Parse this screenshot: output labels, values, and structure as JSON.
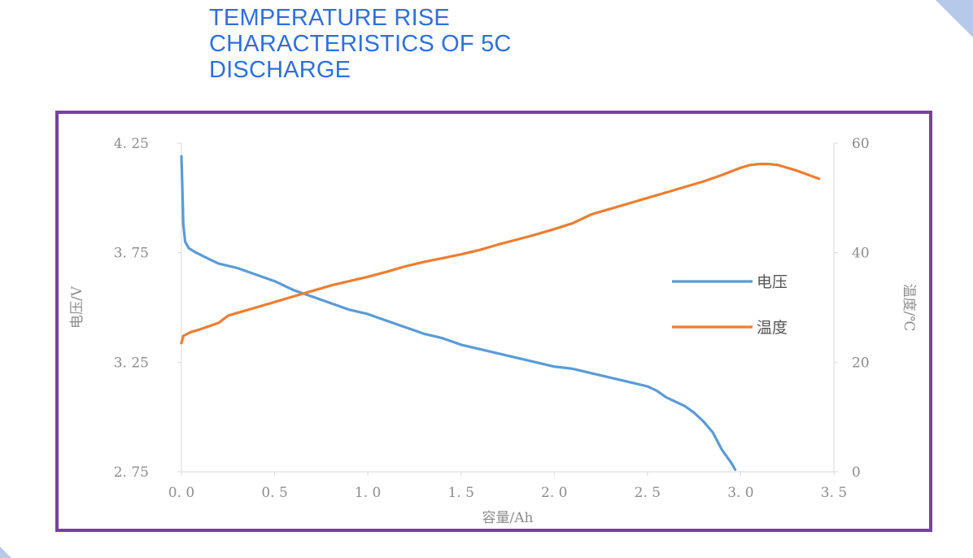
{
  "page": {
    "title": "TEMPERATURE RISE\nCHARACTERISTICS OF 5C\nDISCHARGE"
  },
  "chart_data": {
    "type": "line",
    "title": "",
    "xlabel": "容量/Ah",
    "ylabel": "电压/V",
    "y2label": "温度/℃",
    "xlim": [
      0,
      3.5
    ],
    "ylim": [
      2.75,
      4.25
    ],
    "y2lim": [
      0,
      60
    ],
    "x_ticks": [
      "0. 0",
      "0. 5",
      "1. 0",
      "1. 5",
      "2. 0",
      "2. 5",
      "3. 0",
      "3. 5"
    ],
    "y_ticks": [
      "4. 25",
      "3. 75",
      "3. 25",
      "2. 75"
    ],
    "y2_ticks": [
      "60",
      "40",
      "20",
      "0"
    ],
    "grid": false,
    "legend": "right",
    "series": [
      {
        "name": "电压",
        "axis": "left",
        "color": "#5b9bd5",
        "points": [
          [
            0.0,
            4.19
          ],
          [
            0.005,
            4.05
          ],
          [
            0.01,
            3.88
          ],
          [
            0.02,
            3.8
          ],
          [
            0.04,
            3.77
          ],
          [
            0.08,
            3.75
          ],
          [
            0.15,
            3.72
          ],
          [
            0.2,
            3.7
          ],
          [
            0.3,
            3.68
          ],
          [
            0.4,
            3.65
          ],
          [
            0.5,
            3.62
          ],
          [
            0.6,
            3.58
          ],
          [
            0.7,
            3.55
          ],
          [
            0.8,
            3.52
          ],
          [
            0.9,
            3.49
          ],
          [
            1.0,
            3.47
          ],
          [
            1.1,
            3.44
          ],
          [
            1.2,
            3.41
          ],
          [
            1.3,
            3.38
          ],
          [
            1.4,
            3.36
          ],
          [
            1.5,
            3.33
          ],
          [
            1.6,
            3.31
          ],
          [
            1.7,
            3.29
          ],
          [
            1.8,
            3.27
          ],
          [
            1.9,
            3.25
          ],
          [
            2.0,
            3.23
          ],
          [
            2.1,
            3.22
          ],
          [
            2.2,
            3.2
          ],
          [
            2.3,
            3.18
          ],
          [
            2.4,
            3.16
          ],
          [
            2.5,
            3.14
          ],
          [
            2.55,
            3.12
          ],
          [
            2.6,
            3.09
          ],
          [
            2.7,
            3.05
          ],
          [
            2.75,
            3.02
          ],
          [
            2.8,
            2.98
          ],
          [
            2.85,
            2.93
          ],
          [
            2.9,
            2.85
          ],
          [
            2.95,
            2.79
          ],
          [
            2.97,
            2.76
          ]
        ]
      },
      {
        "name": "温度",
        "axis": "right",
        "color": "#ed7d31",
        "points": [
          [
            0.0,
            23.5
          ],
          [
            0.01,
            24.8
          ],
          [
            0.05,
            25.5
          ],
          [
            0.1,
            26.0
          ],
          [
            0.2,
            27.2
          ],
          [
            0.25,
            28.5
          ],
          [
            0.3,
            29.0
          ],
          [
            0.4,
            30.0
          ],
          [
            0.5,
            31.0
          ],
          [
            0.6,
            32.0
          ],
          [
            0.7,
            33.0
          ],
          [
            0.8,
            34.0
          ],
          [
            0.9,
            34.8
          ],
          [
            1.0,
            35.6
          ],
          [
            1.1,
            36.5
          ],
          [
            1.2,
            37.5
          ],
          [
            1.3,
            38.3
          ],
          [
            1.4,
            39.0
          ],
          [
            1.5,
            39.7
          ],
          [
            1.6,
            40.5
          ],
          [
            1.7,
            41.5
          ],
          [
            1.8,
            42.4
          ],
          [
            1.9,
            43.3
          ],
          [
            2.0,
            44.3
          ],
          [
            2.1,
            45.4
          ],
          [
            2.2,
            47.0
          ],
          [
            2.3,
            48.0
          ],
          [
            2.4,
            49.0
          ],
          [
            2.5,
            50.0
          ],
          [
            2.6,
            51.0
          ],
          [
            2.7,
            52.0
          ],
          [
            2.8,
            53.0
          ],
          [
            2.9,
            54.2
          ],
          [
            3.0,
            55.5
          ],
          [
            3.05,
            56.0
          ],
          [
            3.1,
            56.2
          ],
          [
            3.15,
            56.2
          ],
          [
            3.2,
            56.0
          ],
          [
            3.3,
            55.0
          ],
          [
            3.42,
            53.5
          ]
        ]
      }
    ]
  }
}
